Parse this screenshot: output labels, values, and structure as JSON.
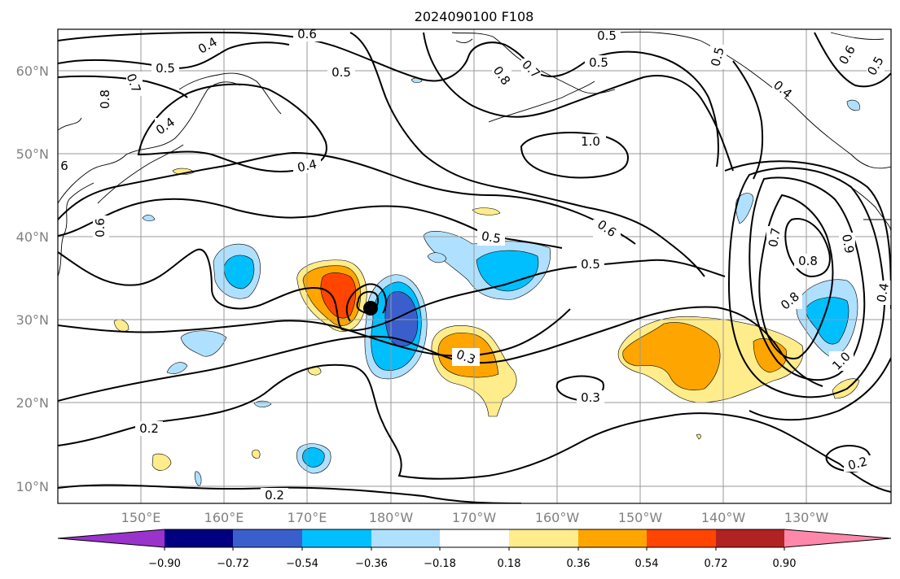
{
  "title": "2024090100 F108",
  "lat_labels": [
    "60°N",
    "50°N",
    "40°N",
    "30°N",
    "20°N",
    "10°N"
  ],
  "lon_labels": [
    "150°E",
    "160°E",
    "170°E",
    "180°W",
    "170°W",
    "160°W",
    "150°W",
    "140°W",
    "130°W"
  ],
  "colorbar": {
    "ticks": [
      "−0.90",
      "−0.72",
      "−0.54",
      "−0.36",
      "−0.18",
      "0.18",
      "0.36",
      "0.54",
      "0.72",
      "0.90"
    ],
    "colors": [
      "#9933cc",
      "#000080",
      "#3a5fcd",
      "#00bfff",
      "#b0e0ff",
      "#ffffff",
      "#ffec8b",
      "#ffa500",
      "#ff4500",
      "#b22222",
      "#ff88aa"
    ]
  },
  "contour_labels": {
    "c1": "0.6",
    "c2": "0.5",
    "c3": "0.5",
    "c4": "0.5",
    "c5": "0.5",
    "c6": "0.4",
    "c7": "0.8",
    "c8": "0.7",
    "c9": "0.4",
    "c10": "0.4",
    "c11": "0.8",
    "c12": "0.7",
    "c13": "0.5",
    "c14": "1.0",
    "c15": "0.6",
    "c16": "0.5",
    "c17": "0.5",
    "c18": "0.7",
    "c19": "0.8",
    "c20": "0.9",
    "c21": "0.8",
    "c22": "0.4",
    "c23": "1.0",
    "c24": "0.3",
    "c25": "0.3",
    "c26": "0.2",
    "c27": "0.2",
    "c28": "0.2",
    "c29": "0.6",
    "c30": "0.6",
    "c31": "0.5",
    "c32": "0.6",
    "c33": "6",
    "c34": "0.4"
  }
}
